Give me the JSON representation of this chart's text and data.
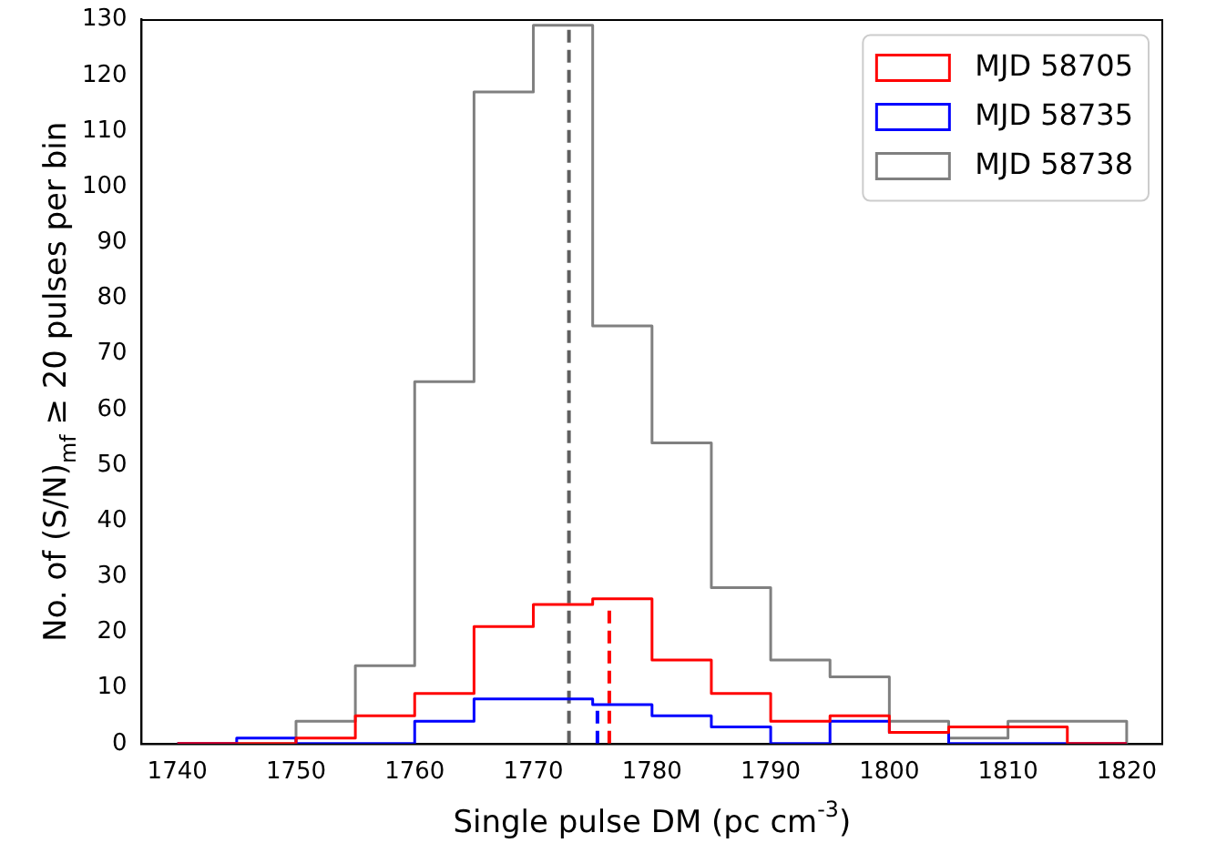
{
  "chart_data": {
    "type": "histogram",
    "xlabel": "Single pulse DM (pc cm$^{-3}$)",
    "ylabel": "No. of (S/N)$_{mf}$ ≥ 20 pulses per bin",
    "bins": [
      1740,
      1745,
      1750,
      1755,
      1760,
      1765,
      1770,
      1775,
      1780,
      1785,
      1790,
      1795,
      1800,
      1805,
      1810,
      1815,
      1820
    ],
    "series": [
      {
        "name": "MJD 58705",
        "color": "#ff0000",
        "values": [
          0,
          0,
          1,
          5,
          9,
          21,
          25,
          26,
          15,
          9,
          4,
          5,
          2,
          3,
          3,
          0
        ]
      },
      {
        "name": "MJD 58735",
        "color": "#0000ff",
        "values": [
          0,
          1,
          0,
          0,
          4,
          8,
          8,
          7,
          5,
          3,
          0,
          4,
          2,
          0,
          0,
          0
        ]
      },
      {
        "name": "MJD 58738",
        "color": "#808080",
        "values": [
          0,
          0,
          4,
          14,
          65,
          117,
          129,
          75,
          54,
          28,
          15,
          12,
          4,
          1,
          4,
          4
        ]
      },
      {
        "type": "line",
        "color": "#ff0000",
        "line_style": "dashed",
        "x": [
          1776.4,
          1776.4
        ],
        "values": [
          0,
          25
        ]
      },
      {
        "type": "line",
        "color": "#0000ff",
        "line_style": "dashed",
        "x": [
          1775.4,
          1775.4
        ],
        "values": [
          0,
          6.5
        ]
      },
      {
        "type": "line",
        "color": "#5f5f5f",
        "line_style": "dashed",
        "x": [
          1773,
          1773
        ],
        "values": [
          0,
          129
        ]
      }
    ],
    "xlim": [
      1737,
      1823
    ],
    "xticks": [
      1740,
      1750,
      1760,
      1770,
      1780,
      1790,
      1800,
      1810,
      1820
    ],
    "ylim": [
      0,
      130
    ],
    "yticks": [
      0,
      10,
      20,
      30,
      40,
      50,
      60,
      70,
      80,
      90,
      100,
      110,
      120,
      130
    ],
    "legend": "top right",
    "grid": false
  }
}
